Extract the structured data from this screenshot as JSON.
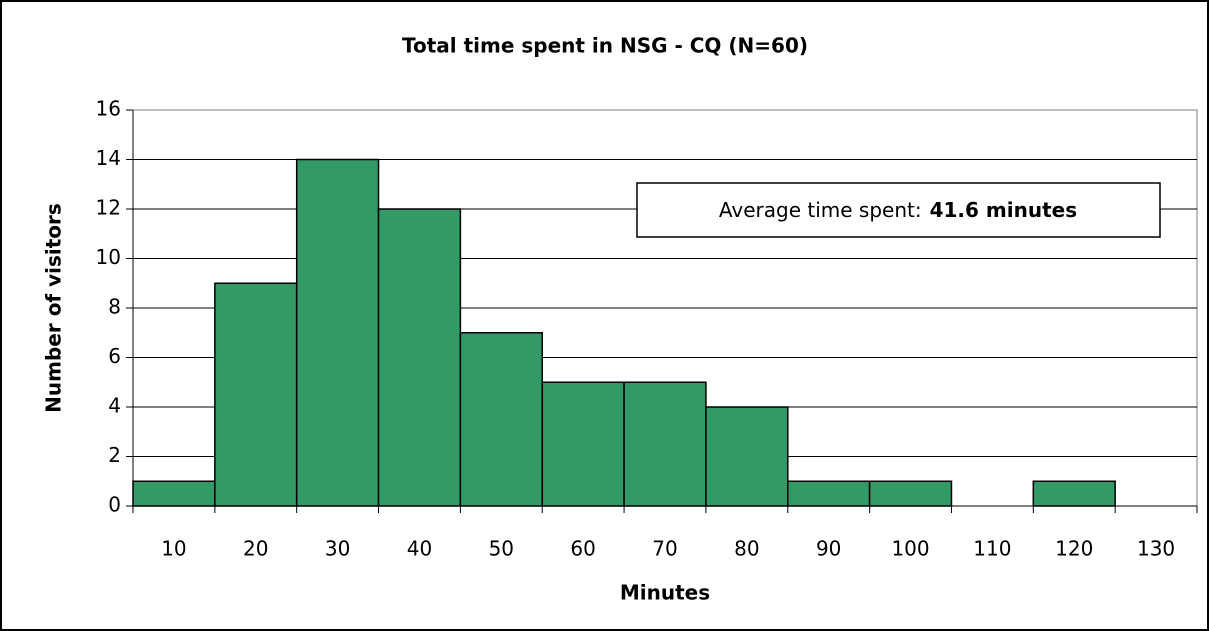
{
  "chart_data": {
    "type": "bar",
    "title": "Total time spent in NSG - CQ (N=60)",
    "x_label": "Minutes",
    "y_label": "Number of visitors",
    "categories": [
      "10",
      "20",
      "30",
      "40",
      "50",
      "60",
      "70",
      "80",
      "90",
      "100",
      "110",
      "120",
      "130"
    ],
    "values": [
      1,
      9,
      14,
      12,
      7,
      5,
      5,
      4,
      1,
      1,
      0,
      1,
      0
    ],
    "color": "#339966",
    "ylim": [
      0,
      16
    ],
    "yticks": [
      0,
      2,
      4,
      6,
      8,
      10,
      12,
      14,
      16
    ],
    "grid": true,
    "annotation": {
      "label": "Average time spent:",
      "value": "41.6 minutes"
    }
  }
}
